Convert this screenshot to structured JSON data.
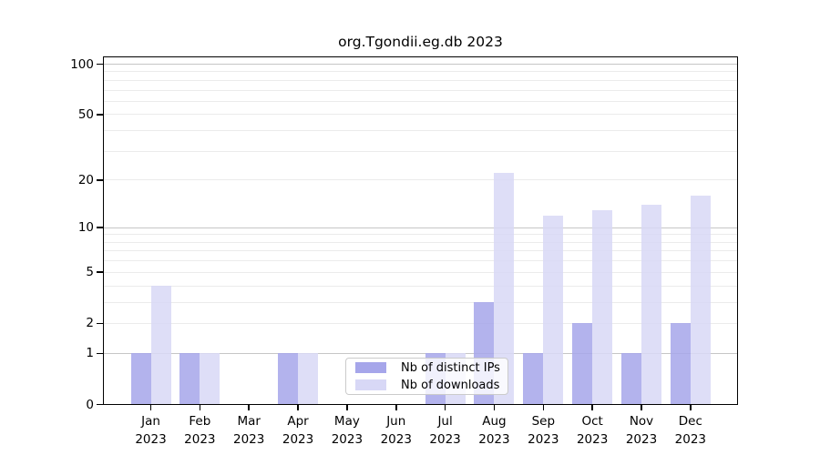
{
  "chart_data": {
    "type": "bar",
    "title": "org.Tgondii.eg.db 2023",
    "categories": [
      "Jan",
      "Feb",
      "Mar",
      "Apr",
      "May",
      "Jun",
      "Jul",
      "Aug",
      "Sep",
      "Oct",
      "Nov",
      "Dec"
    ],
    "year_label": "2023",
    "series": [
      {
        "name": "Nb of distinct IPs",
        "color": "#a6a6ea",
        "values": [
          1,
          1,
          0,
          1,
          0,
          0,
          1,
          3,
          1,
          2,
          1,
          2
        ]
      },
      {
        "name": "Nb of downloads",
        "color": "#d8d8f6",
        "values": [
          4,
          1,
          0,
          1,
          0,
          0,
          1,
          22,
          12,
          13,
          14,
          16
        ]
      }
    ],
    "y_scale": "log1p",
    "y_ticks": [
      0,
      1,
      2,
      5,
      10,
      20,
      50,
      100
    ],
    "y_tick_labels": [
      "0",
      "1",
      "2",
      "5",
      "10",
      "20",
      "50",
      "100"
    ],
    "ylim": [
      0,
      100
    ],
    "grid_minor": [
      2,
      3,
      4,
      5,
      6,
      7,
      8,
      9,
      20,
      30,
      40,
      50,
      60,
      70,
      80,
      90
    ],
    "grid_major": [
      1,
      10,
      100
    ],
    "legend_position": "inside-bottom-center",
    "axis_color": "#000000",
    "grid_minor_color": "#ebebeb",
    "grid_major_color": "#c6c6c6"
  }
}
